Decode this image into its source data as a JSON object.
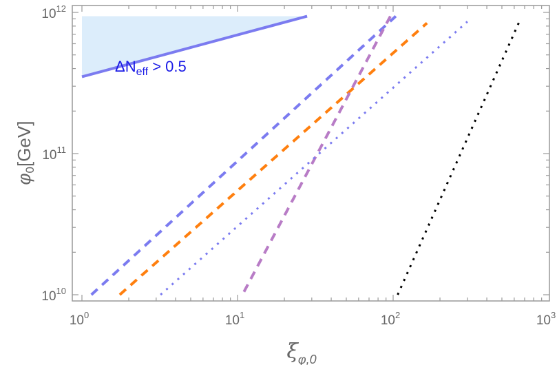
{
  "chart_data": {
    "type": "line",
    "title": "",
    "xlabel": "ξ_{φ,0}",
    "ylabel": "φ_0[GeV]",
    "xscale": "log",
    "yscale": "log",
    "xlim": [
      1,
      1000
    ],
    "ylim": [
      10000000000.0,
      1000000000000.0
    ],
    "x_ticks": [
      {
        "base": "10",
        "exp": "0",
        "value": 1
      },
      {
        "base": "10",
        "exp": "1",
        "value": 10
      },
      {
        "base": "10",
        "exp": "2",
        "value": 100
      },
      {
        "base": "10",
        "exp": "3",
        "value": 1000
      }
    ],
    "y_ticks": [
      {
        "base": "10",
        "exp": "10",
        "value": 10000000000.0
      },
      {
        "base": "10",
        "exp": "11",
        "value": 100000000000.0
      },
      {
        "base": "10",
        "exp": "12",
        "value": 1000000000000.0
      }
    ],
    "grid": false,
    "legend": null,
    "shaded_region": {
      "label_main": "ΔN",
      "label_sub": "eff",
      "label_rest": " > 0.5",
      "color": "#dcedfb",
      "vertices": [
        [
          1,
          940000000000.0
        ],
        [
          28,
          940000000000.0
        ],
        [
          1,
          350000000000.0
        ]
      ]
    },
    "series": [
      {
        "name": "solid-blue",
        "style": "solid",
        "color": "#7b7bf0",
        "width": 4,
        "x": [
          1,
          28
        ],
        "y": [
          350000000000.0,
          940000000000.0
        ]
      },
      {
        "name": "dashed-blue",
        "style": "dashed",
        "color": "#7b7bf0",
        "width": 4,
        "x": [
          1.15,
          104
        ],
        "y": [
          10000000000.0,
          940000000000.0
        ]
      },
      {
        "name": "dashed-orange",
        "style": "dashed",
        "color": "#ff7f0e",
        "width": 4,
        "x": [
          1.75,
          165
        ],
        "y": [
          10000000000.0,
          840000000000.0
        ]
      },
      {
        "name": "dashed-purple",
        "style": "dashed",
        "color": "#b87cc6",
        "width": 4,
        "x": [
          11,
          97
        ],
        "y": [
          10500000000.0,
          960000000000.0
        ]
      },
      {
        "name": "dotted-blue",
        "style": "dotted",
        "color": "#7b7bf0",
        "width": 3,
        "x": [
          3.2,
          300
        ],
        "y": [
          10000000000.0,
          860000000000.0
        ]
      },
      {
        "name": "dotted-black",
        "style": "dotted",
        "color": "#000000",
        "width": 3,
        "x": [
          107,
          650
        ],
        "y": [
          10000000000.0,
          870000000000.0
        ]
      }
    ]
  }
}
